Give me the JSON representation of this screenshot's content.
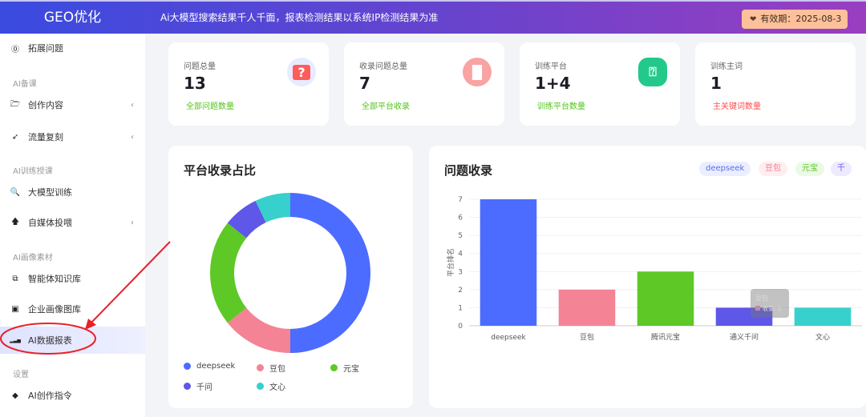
{
  "header": {
    "logo": "GEO优化",
    "notice": "Ai大模型搜索结果千人千面，报表检测结果以系统IP检测结果为准",
    "expiry": "有效期：2025-08-3"
  },
  "sidebar": {
    "items": [
      {
        "label": "拓展问题",
        "icon": "question-circle-icon",
        "glyph": "⓪"
      },
      {
        "label": "创作内容",
        "icon": "folder-open-icon",
        "glyph": "🗁",
        "chevron": true
      },
      {
        "label": "流量复刻",
        "icon": "rocket-icon",
        "glyph": "➶",
        "chevron": true
      },
      {
        "label": "大模型训练",
        "icon": "search-icon",
        "glyph": "🔍"
      },
      {
        "label": "自媒体投喂",
        "icon": "arrow-up-icon",
        "glyph": "🡅",
        "chevron": true
      },
      {
        "label": "智能体知识库",
        "icon": "copy-icon",
        "glyph": "⧉"
      },
      {
        "label": "企业画像图库",
        "icon": "image-icon",
        "glyph": "▣"
      },
      {
        "label": "AI数据报表",
        "icon": "signal-bars-icon",
        "glyph": "▂▃▅"
      },
      {
        "label": "AI创作指令",
        "icon": "tag-icon",
        "glyph": "◆"
      }
    ],
    "groups": [
      "AI备课",
      "AI训练授课",
      "AI画像素材",
      "设置"
    ],
    "active": "AI数据报表"
  },
  "cards": [
    {
      "title": "问题总量",
      "value": "13",
      "sub": "全部问题数量",
      "sub_color": "#52c41a",
      "icon": "question-bubble-icon",
      "icon_bg": "#e6ecff",
      "icon_color": "#ff5b5b"
    },
    {
      "title": "收录问题总量",
      "value": "7",
      "sub": "全部平台收录",
      "sub_color": "#52c41a",
      "icon": "bar-chart-icon",
      "icon_bg": "#f9a3a3",
      "icon_color": "#ffffff"
    },
    {
      "title": "训练平台",
      "value": "1+4",
      "sub": "训练平台数量",
      "sub_color": "#52c41a",
      "icon": "search-question-icon",
      "icon_bg": "#22c98a",
      "icon_color": "#ffffff"
    },
    {
      "title": "训练主词",
      "value": "1",
      "sub": "主关键词数量",
      "sub_color": "#ff4d4f",
      "icon": "",
      "icon_bg": "",
      "icon_color": ""
    }
  ],
  "chart_data": [
    {
      "type": "pie",
      "title": "平台收录占比",
      "donut": true,
      "labels": [
        "deepseek",
        "豆包",
        "元宝",
        "千问",
        "文心"
      ],
      "values": [
        7,
        2,
        3,
        1,
        1
      ],
      "colors": [
        "#4c6cff",
        "#f48395",
        "#5ec826",
        "#5e57e8",
        "#37d0cc"
      ],
      "legend": "bottom"
    },
    {
      "type": "bar",
      "title": "问题收录",
      "ylabel": "平台排名",
      "categories": [
        "deepseek",
        "豆包",
        "腾讯元宝",
        "通义千问",
        "文心"
      ],
      "values": [
        7,
        2,
        3,
        1,
        1
      ],
      "colors": [
        "#4c6cff",
        "#f48395",
        "#5ec826",
        "#5e57e8",
        "#37d0cc"
      ],
      "ylim": [
        0,
        7
      ],
      "yticks": [
        0,
        1,
        2,
        3,
        4,
        5,
        6,
        7
      ],
      "grid": true,
      "filters": [
        {
          "label": "deepseek",
          "bg": "#eaeeff",
          "fg": "#5b6cf0"
        },
        {
          "label": "豆包",
          "bg": "#ffeef0",
          "fg": "#f27b8c"
        },
        {
          "label": "元宝",
          "bg": "#ebf9e6",
          "fg": "#5ec826"
        },
        {
          "label": "千",
          "bg": "#eeeaff",
          "fg": "#6b5ce8"
        }
      ],
      "tooltip": {
        "title": "豆包",
        "series": "收录",
        "value": "2"
      }
    }
  ]
}
